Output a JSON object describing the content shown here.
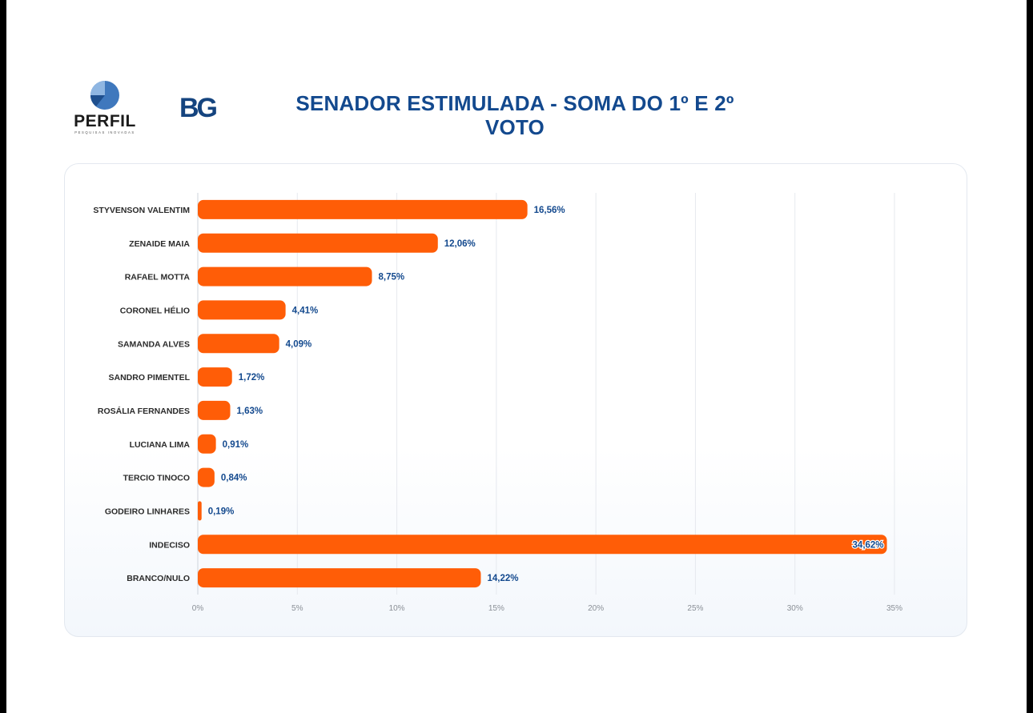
{
  "header": {
    "title_line1": "SENADOR ESTIMULADA - SOMA DO 1º E 2º",
    "title_line2": "VOTO",
    "logo_perfil_text": "PERFIL",
    "logo_perfil_tagline": "PESQUISAS INOVADAS",
    "logo_bg_text": "BG"
  },
  "colors": {
    "bar": "#ff5d07",
    "title": "#13498e",
    "value_label": "#13498e",
    "grid": "#e6e9ee"
  },
  "chart_data": {
    "type": "bar",
    "orientation": "horizontal",
    "title": "SENADOR ESTIMULADA - SOMA DO 1º E 2º VOTO",
    "categories": [
      "STYVENSON VALENTIM",
      "ZENAIDE MAIA",
      "RAFAEL MOTTA",
      "CORONEL HÉLIO",
      "SAMANDA ALVES",
      "SANDRO PIMENTEL",
      "ROSÁLIA FERNANDES",
      "LUCIANA LIMA",
      "TERCIO TINOCO",
      "GODEIRO LINHARES",
      "INDECISO",
      "BRANCO/NULO"
    ],
    "values": [
      16.56,
      12.06,
      8.75,
      4.41,
      4.09,
      1.72,
      1.63,
      0.91,
      0.84,
      0.19,
      34.62,
      14.22
    ],
    "value_labels": [
      "16,56%",
      "12,06%",
      "8,75%",
      "4,41%",
      "4,09%",
      "1,72%",
      "1,63%",
      "0,91%",
      "0,84%",
      "0,19%",
      "34,62%",
      "14,22%"
    ],
    "xlim": [
      0,
      35
    ],
    "x_ticks": [
      0,
      5,
      10,
      15,
      20,
      25,
      30,
      35
    ],
    "x_tick_labels": [
      "0%",
      "5%",
      "10%",
      "15%",
      "20%",
      "25%",
      "30%",
      "35%"
    ],
    "xlabel": "",
    "ylabel": "",
    "grid": true
  }
}
